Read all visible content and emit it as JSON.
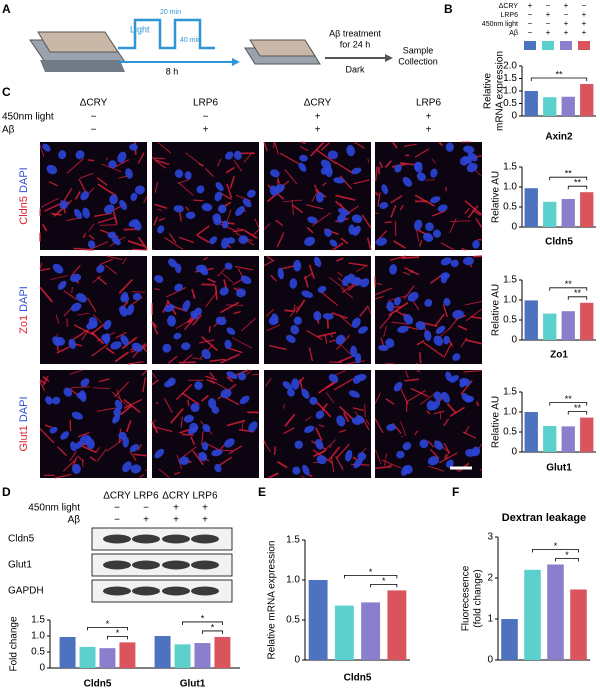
{
  "panel_labels": [
    "A",
    "B",
    "C",
    "D",
    "E",
    "F"
  ],
  "schematic": {
    "light": "Light",
    "pulse_on": "20 min",
    "pulse_off": "40 min",
    "duration": "8 h",
    "treatment": [
      "Aβ treatment",
      "for 24 h"
    ],
    "dark": "Dark",
    "end": [
      "Sample",
      "Collection"
    ]
  },
  "conditions": {
    "rows": [
      {
        "label": "ΔCRY",
        "marks": [
          "+",
          "−",
          "+",
          "−"
        ]
      },
      {
        "label": "LRP6",
        "marks": [
          "−",
          "+",
          "−",
          "+"
        ]
      },
      {
        "label": "450nm light",
        "marks": [
          "−",
          "−",
          "+",
          "+"
        ]
      },
      {
        "label": "Aβ",
        "marks": [
          "−",
          "+",
          "+",
          "+"
        ]
      }
    ],
    "colors": [
      "#4d72c0",
      "#5cd0cc",
      "#8a7fcc",
      "#d9545c"
    ]
  },
  "microscopy": {
    "columns": [
      "ΔCRY",
      "LRP6",
      "ΔCRY",
      "LRP6"
    ],
    "condition_rows": [
      {
        "label": "450nm light",
        "marks": [
          "−",
          "−",
          "+",
          "+"
        ]
      },
      {
        "label": "Aβ",
        "marks": [
          "−",
          "+",
          "+",
          "+"
        ]
      }
    ],
    "rows": [
      {
        "stain": "Cldn5",
        "counter": "DAPI"
      },
      {
        "stain": "Zo1",
        "counter": "DAPI"
      },
      {
        "stain": "Glut1",
        "counter": "DAPI"
      }
    ]
  },
  "blot": {
    "columns": [
      "ΔCRY",
      "LRP6",
      "ΔCRY",
      "LRP6"
    ],
    "condition_rows": [
      {
        "label": "450nm light",
        "marks": [
          "−",
          "−",
          "+",
          "+"
        ]
      },
      {
        "label": "Aβ",
        "marks": [
          "−",
          "+",
          "+",
          "+"
        ]
      }
    ],
    "bands": [
      "Cldn5",
      "Glut1",
      "GAPDH"
    ]
  },
  "chart_data": [
    {
      "type": "bar",
      "ylabel": [
        "Relative",
        "mRNA expression"
      ],
      "xlabel": "Axin2",
      "values": [
        1.0,
        0.75,
        0.77,
        1.28
      ],
      "colors": [
        "#4d72c0",
        "#5cd0cc",
        "#8a7fcc",
        "#d9545c"
      ],
      "ylim": [
        0,
        2
      ],
      "yticks": [
        0,
        0.5,
        {
          "value": 1,
          "label": "1.0"
        },
        1.5,
        {
          "value": 2,
          "label": "2.0"
        }
      ],
      "brackets": [
        {
          "from": 0,
          "to": 3,
          "label": "**"
        }
      ]
    },
    {
      "type": "bar",
      "ylabel": [
        "Relative AU"
      ],
      "xlabel": "Cldn5",
      "values": [
        0.97,
        0.63,
        0.7,
        0.87
      ],
      "colors": [
        "#4d72c0",
        "#5cd0cc",
        "#8a7fcc",
        "#d9545c"
      ],
      "ylim": [
        0,
        1.5
      ],
      "yticks": [
        0,
        0.5,
        {
          "value": 1,
          "label": "1.0"
        },
        1.5
      ],
      "brackets": [
        {
          "from": 1,
          "to": 3,
          "label": "**"
        },
        {
          "from": 2,
          "to": 3,
          "label": "**"
        }
      ]
    },
    {
      "type": "bar",
      "ylabel": [
        "Relative AU"
      ],
      "xlabel": "Zo1",
      "values": [
        0.99,
        0.66,
        0.72,
        0.93
      ],
      "colors": [
        "#4d72c0",
        "#5cd0cc",
        "#8a7fcc",
        "#d9545c"
      ],
      "ylim": [
        0,
        1.5
      ],
      "yticks": [
        0,
        0.5,
        {
          "value": 1,
          "label": "1.0"
        },
        1.5
      ],
      "brackets": [
        {
          "from": 1,
          "to": 3,
          "label": "**"
        },
        {
          "from": 2,
          "to": 3,
          "label": "**"
        }
      ]
    },
    {
      "type": "bar",
      "ylabel": [
        "Relative AU"
      ],
      "xlabel": "Glut1",
      "values": [
        1.0,
        0.65,
        0.64,
        0.86
      ],
      "colors": [
        "#4d72c0",
        "#5cd0cc",
        "#8a7fcc",
        "#d9545c"
      ],
      "ylim": [
        0,
        1.5
      ],
      "yticks": [
        0,
        0.5,
        {
          "value": 1,
          "label": "1.0"
        },
        1.5
      ],
      "brackets": [
        {
          "from": 1,
          "to": 3,
          "label": "**"
        },
        {
          "from": 2,
          "to": 3,
          "label": "**"
        }
      ]
    },
    {
      "type": "grouped_bar",
      "ylabel": [
        "Fold change"
      ],
      "categories": [
        "Cldn5",
        "Glut1"
      ],
      "series": [
        {
          "color": "#4d72c0",
          "values": [
            0.97,
            1.0
          ]
        },
        {
          "color": "#5cd0cc",
          "values": [
            0.66,
            0.74
          ]
        },
        {
          "color": "#8a7fcc",
          "values": [
            0.62,
            0.78
          ]
        },
        {
          "color": "#d9545c",
          "values": [
            0.8,
            0.97
          ]
        }
      ],
      "ylim": [
        0,
        1.5
      ],
      "yticks": [
        0,
        0.5,
        {
          "value": 1,
          "label": "1.0"
        },
        1.5
      ],
      "brackets": [
        {
          "group": 0,
          "from": 1,
          "to": 3,
          "label": "*"
        },
        {
          "group": 0,
          "from": 2,
          "to": 3,
          "label": "*"
        },
        {
          "group": 1,
          "from": 1,
          "to": 3,
          "label": "*"
        },
        {
          "group": 1,
          "from": 2,
          "to": 3,
          "label": "*"
        }
      ]
    },
    {
      "type": "bar",
      "ylabel": [
        "Relative mRNA expression"
      ],
      "xlabel": "Cldn5",
      "values": [
        1.0,
        0.68,
        0.72,
        0.87
      ],
      "colors": [
        "#4d72c0",
        "#5cd0cc",
        "#8a7fcc",
        "#d9545c"
      ],
      "ylim": [
        0,
        1.5
      ],
      "yticks": [
        0,
        0.5,
        {
          "value": 1,
          "label": "1.0"
        },
        1.5
      ],
      "brackets": [
        {
          "from": 1,
          "to": 3,
          "label": "*"
        },
        {
          "from": 2,
          "to": 3,
          "label": "*"
        }
      ]
    },
    {
      "type": "bar",
      "title": "Dextran leakage",
      "ylabel": [
        "Fluorecesence",
        "(fold change)"
      ],
      "values": [
        1.0,
        2.2,
        2.33,
        1.72
      ],
      "colors": [
        "#4d72c0",
        "#5cd0cc",
        "#8a7fcc",
        "#d9545c"
      ],
      "ylim": [
        0,
        3
      ],
      "yticks": [
        0,
        1,
        2,
        3
      ],
      "brackets": [
        {
          "from": 1,
          "to": 3,
          "label": "*"
        },
        {
          "from": 2,
          "to": 3,
          "label": "*"
        }
      ]
    }
  ]
}
